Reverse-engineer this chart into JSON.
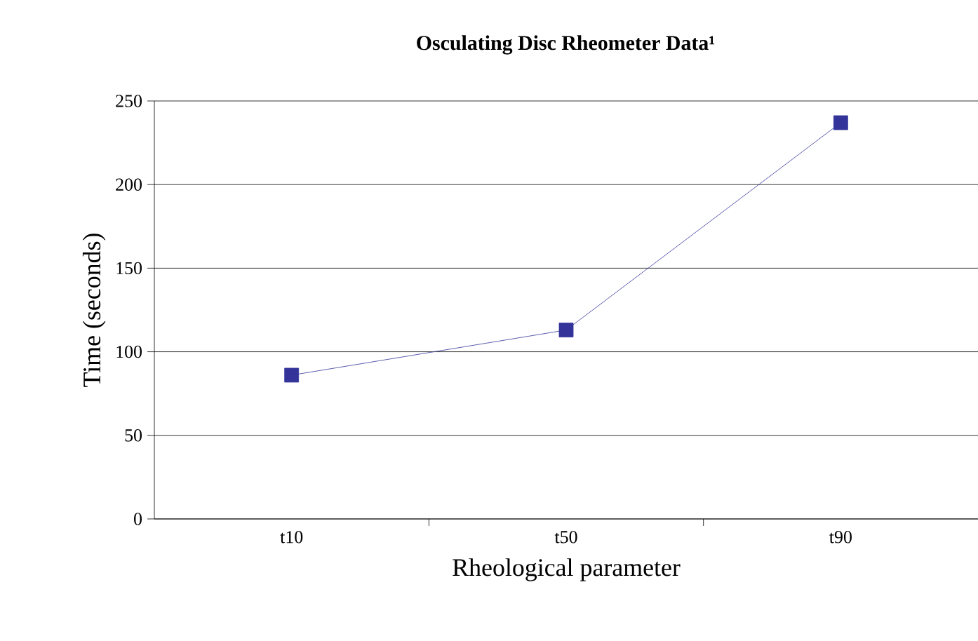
{
  "chart_data": {
    "type": "line",
    "title": "Osculating Disc Rheometer Data¹",
    "xlabel": "Rheological parameter",
    "ylabel": "Time (seconds)",
    "categories": [
      "t10",
      "t50",
      "t90"
    ],
    "series": [
      {
        "color": "#333399",
        "values": [
          86,
          113,
          237
        ]
      }
    ],
    "ylim": [
      0,
      250
    ],
    "yticks": [
      0,
      50,
      100,
      150,
      200,
      250
    ],
    "grid": "y",
    "marker": "square",
    "line_style": "solid"
  }
}
